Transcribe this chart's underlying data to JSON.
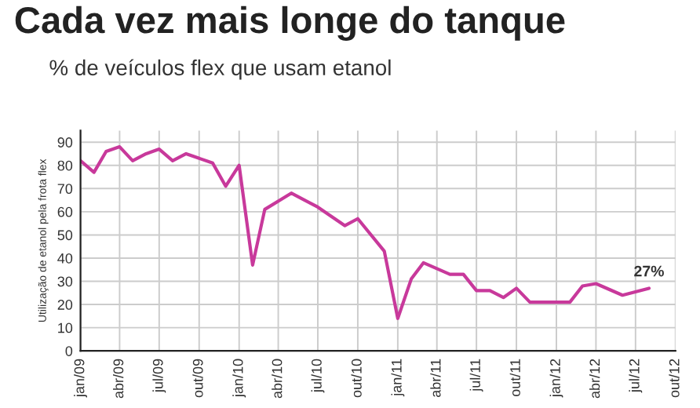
{
  "chart_data": {
    "type": "line",
    "title": "Cada vez mais longe do tanque",
    "subtitle": "% de veículos flex que usam etanol",
    "ylabel": "Utilização de etanol pela frota flex",
    "x": [
      "2009-01",
      "2009-02",
      "2009-03",
      "2009-04",
      "2009-05",
      "2009-06",
      "2009-07",
      "2009-08",
      "2009-09",
      "2009-11",
      "2009-12",
      "2010-01",
      "2010-02",
      "2010-03",
      "2010-05",
      "2010-07",
      "2010-09",
      "2010-10",
      "2010-12",
      "2011-01",
      "2011-02",
      "2011-03",
      "2011-05",
      "2011-06",
      "2011-07",
      "2011-08",
      "2011-09",
      "2011-10",
      "2011-11",
      "2012-02",
      "2012-03",
      "2012-04",
      "2012-06",
      "2012-08"
    ],
    "series": [
      {
        "color": "#c8399b",
        "values": [
          82,
          77,
          86,
          88,
          82,
          85,
          87,
          82,
          85,
          81,
          71,
          80,
          37,
          61,
          68,
          62,
          54,
          57,
          43,
          14,
          31,
          38,
          33,
          33,
          26,
          26,
          23,
          27,
          21,
          21,
          28,
          29,
          24,
          27
        ]
      }
    ],
    "xlim": [
      "2009-01",
      "2012-10"
    ],
    "xticks": [
      {
        "value": "2009-01",
        "label": "jan/09"
      },
      {
        "value": "2009-04",
        "label": "abr/09"
      },
      {
        "value": "2009-07",
        "label": "jul/09"
      },
      {
        "value": "2009-10",
        "label": "out/09"
      },
      {
        "value": "2010-01",
        "label": "jan/10"
      },
      {
        "value": "2010-04",
        "label": "abr/10"
      },
      {
        "value": "2010-07",
        "label": "jul/10"
      },
      {
        "value": "2010-10",
        "label": "out/10"
      },
      {
        "value": "2011-01",
        "label": "jan/11"
      },
      {
        "value": "2011-04",
        "label": "abr/11"
      },
      {
        "value": "2011-07",
        "label": "jul/11"
      },
      {
        "value": "2011-10",
        "label": "out/11"
      },
      {
        "value": "2012-01",
        "label": "jan/12"
      },
      {
        "value": "2012-04",
        "label": "abr/12"
      },
      {
        "value": "2012-07",
        "label": "jul/12"
      },
      {
        "value": "2012-10",
        "label": "out/12"
      }
    ],
    "ylim": [
      0,
      95
    ],
    "yticks": [
      0,
      10,
      20,
      30,
      40,
      50,
      60,
      70,
      80,
      90
    ],
    "annotations": [
      {
        "text": "27%",
        "x": "2012-08",
        "y": 27
      }
    ],
    "grid": true,
    "marker": "none",
    "line_style": "solid",
    "legend": false
  }
}
